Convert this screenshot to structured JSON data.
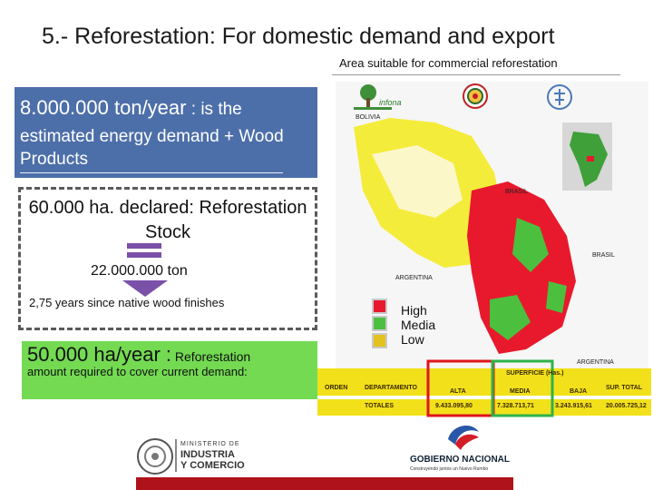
{
  "title": "5.- Reforestation: For domestic demand and export",
  "map_caption": "Area  suitable for commercial reforestation",
  "demand_box": {
    "figure": "8.000.000 ton/year",
    "suffix": " : is the",
    "description": "estimated energy demand + Wood Products"
  },
  "stock_box": {
    "title": "60.000 ha. declared: Reforestation Stock",
    "tons": "22.000.000 ton",
    "years": "2,75 years since native wood finishes"
  },
  "target_box": {
    "figure": "50.000 ha/year :",
    "label": " Reforestation",
    "sub": "amount required to cover current demand:"
  },
  "logos": {
    "infona_label": "infona",
    "ministry_line1": "MINISTERIO DE",
    "ministry_line2": "INDUSTRIA",
    "ministry_line3": "Y COMERCIO",
    "gov_line1": "GOBIERNO",
    "gov_line2": "NACIONAL",
    "gov_tagline": "Construyendo juntos un Nuevo Rumbo"
  },
  "map_labels": {
    "bolivia": "BOLIVIA",
    "brasil1": "BRASIL",
    "brasil2": "BRASIL",
    "argentina1": "ARGENTINA",
    "argentina2": "ARGENTINA"
  },
  "legend": [
    {
      "label": "High",
      "color": "#e8192c"
    },
    {
      "label": "Media",
      "color": "#4cbf3f"
    },
    {
      "label": "Low",
      "color": "#e3c21d"
    }
  ],
  "table": {
    "headers": {
      "orden": "ORDEN",
      "departamento": "DEPARTAMENTO",
      "superficie": "SUPERFICIE (Has.)",
      "alta": "ALTA",
      "media": "MEDIA",
      "baja": "BAJA",
      "sup_total": "SUP. TOTAL"
    },
    "totals": {
      "label": "TOTALES",
      "alta": "9.433.095,80",
      "media": "7.328.713,71",
      "baja": "3.243.915,61",
      "sup_total": "20.005.725,12"
    }
  },
  "colors": {
    "blue_box": "#4d6fa9",
    "green_box": "#73da52",
    "table_yellow": "#f2e11a",
    "highlight_red": "#e0141b",
    "highlight_green": "#2fb34a",
    "footer_red": "#b0121b"
  }
}
